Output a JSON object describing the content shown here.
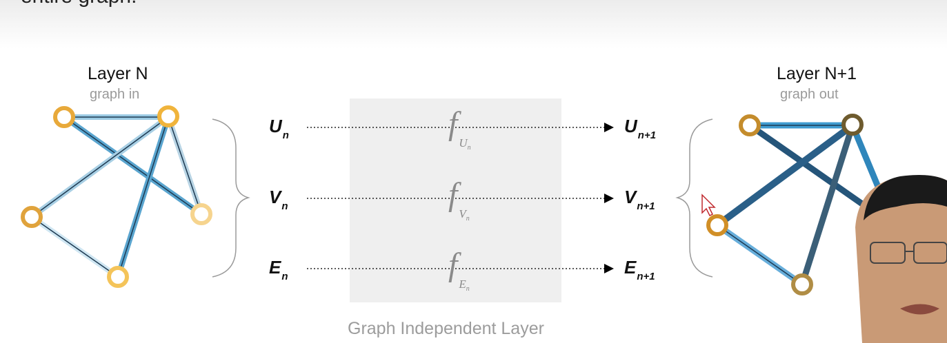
{
  "header": {
    "clipped_text": "entire graph."
  },
  "left_graph": {
    "title": "Layer N",
    "subtitle": "graph in"
  },
  "right_graph": {
    "title": "Layer N+1",
    "subtitle": "graph out"
  },
  "inputs": [
    {
      "symbol": "U",
      "sub": "n"
    },
    {
      "symbol": "V",
      "sub": "n"
    },
    {
      "symbol": "E",
      "sub": "n"
    }
  ],
  "functions": [
    {
      "symbol": "f",
      "sub": "U",
      "subsub": "n"
    },
    {
      "symbol": "f",
      "sub": "V",
      "subsub": "n"
    },
    {
      "symbol": "f",
      "sub": "E",
      "subsub": "n"
    }
  ],
  "outputs": [
    {
      "symbol": "U",
      "sub": "n+1"
    },
    {
      "symbol": "V",
      "sub": "n+1"
    },
    {
      "symbol": "E",
      "sub": "n+1"
    }
  ],
  "center": {
    "caption": "Graph Independent Layer"
  },
  "colors": {
    "node_ring": "#e8a93a",
    "edge_blue": "#5aa5cf",
    "edge_dark": "#2d5d80",
    "box_bg": "#efefef"
  }
}
